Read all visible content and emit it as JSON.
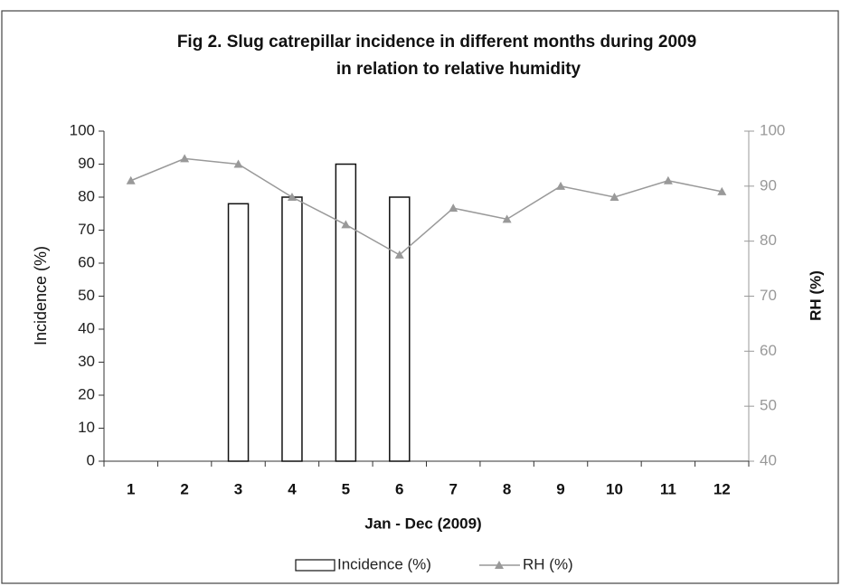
{
  "chart_data": {
    "type": "bar_line",
    "title": [
      "Fig 2. Slug catrepillar incidence in different months during 2009",
      "in relation to relative humidity"
    ],
    "x_label": "Jan - Dec (2009)",
    "y_label": "Incidence (%)",
    "y2_label": "RH (%)",
    "categories": [
      "1",
      "2",
      "3",
      "4",
      "5",
      "6",
      "7",
      "8",
      "9",
      "10",
      "11",
      "12"
    ],
    "series": [
      {
        "name": "Incidence (%)",
        "type": "bar",
        "color": "#ffffff",
        "values": [
          0,
          0,
          78,
          80,
          90,
          80,
          0,
          0,
          0,
          0,
          0,
          0
        ]
      },
      {
        "name": "RH (%)",
        "type": "line",
        "axis": "y2",
        "color": "#999999",
        "values": [
          91,
          95,
          94,
          88,
          83,
          77.5,
          86,
          84,
          90,
          88,
          91,
          89
        ]
      }
    ],
    "ylim": [
      0,
      100
    ],
    "yticks": [
      0,
      10,
      20,
      30,
      40,
      50,
      60,
      70,
      80,
      90,
      100
    ],
    "y2lim": [
      40,
      100
    ],
    "y2ticks": [
      40,
      50,
      60,
      70,
      80,
      90,
      100
    ],
    "legend": "bottom"
  }
}
